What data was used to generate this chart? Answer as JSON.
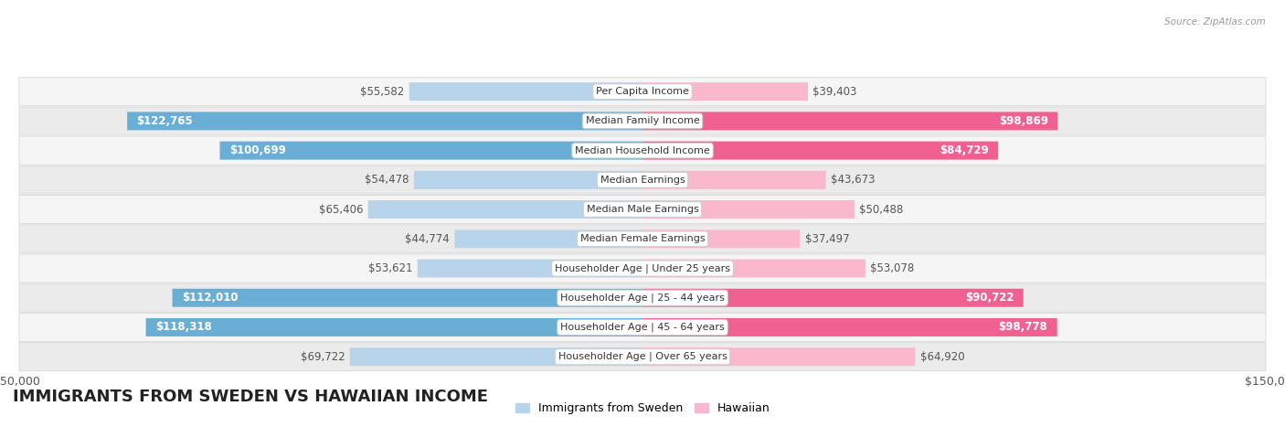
{
  "title": "IMMIGRANTS FROM SWEDEN VS HAWAIIAN INCOME",
  "source": "Source: ZipAtlas.com",
  "categories": [
    "Per Capita Income",
    "Median Family Income",
    "Median Household Income",
    "Median Earnings",
    "Median Male Earnings",
    "Median Female Earnings",
    "Householder Age | Under 25 years",
    "Householder Age | 25 - 44 years",
    "Householder Age | 45 - 64 years",
    "Householder Age | Over 65 years"
  ],
  "sweden_values": [
    55582,
    122765,
    100699,
    54478,
    65406,
    44774,
    53621,
    112010,
    118318,
    69722
  ],
  "hawaii_values": [
    39403,
    98869,
    84729,
    43673,
    50488,
    37497,
    53078,
    90722,
    98778,
    64920
  ],
  "sweden_color_light": "#b8d4ea",
  "sweden_color_dark": "#6aaed6",
  "hawaii_color_light": "#f9b8cc",
  "hawaii_color_dark": "#f06090",
  "max_value": 150000,
  "background_color": "#ffffff",
  "row_bg_colors": [
    "#f5f5f5",
    "#ebebeb"
  ],
  "row_border_color": "#d8d8d8",
  "legend_sweden": "Immigrants from Sweden",
  "legend_hawaii": "Hawaiian",
  "bar_height": 0.62,
  "title_fontsize": 13,
  "label_fontsize": 8.5,
  "category_fontsize": 8.0,
  "inside_threshold": 75000
}
